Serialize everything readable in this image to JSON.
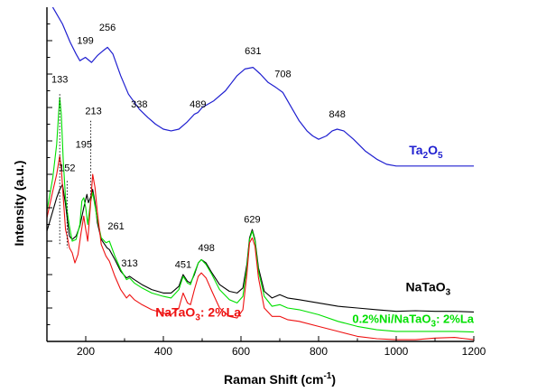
{
  "chart_data": {
    "type": "line",
    "xlabel": "Raman Shift (cm",
    "xlabel_sup": "-1",
    "xlabel_end": ")",
    "ylabel": "Intensity (a.u.)",
    "xlim": [
      100,
      1200
    ],
    "ylim": [
      0,
      10
    ],
    "x_ticks": [
      200,
      400,
      600,
      800,
      1000,
      1200
    ],
    "grid": false,
    "y_tick_labels_shown": false,
    "series": [
      {
        "name": "Ta2O5",
        "label_parts": [
          [
            "Ta",
            "normal"
          ],
          [
            "2",
            "sub"
          ],
          [
            "O",
            "normal"
          ],
          [
            "5",
            "sub"
          ]
        ],
        "label_anchor": [
          1120,
          5.6
        ],
        "color": "#1f1fd0",
        "points": [
          [
            100,
            10.3
          ],
          [
            120,
            9.9
          ],
          [
            140,
            9.5
          ],
          [
            160,
            8.95
          ],
          [
            175,
            8.6
          ],
          [
            185,
            8.4
          ],
          [
            199,
            8.5
          ],
          [
            215,
            8.35
          ],
          [
            230,
            8.55
          ],
          [
            245,
            8.7
          ],
          [
            256,
            8.8
          ],
          [
            270,
            8.6
          ],
          [
            290,
            7.95
          ],
          [
            310,
            7.4
          ],
          [
            338,
            6.95
          ],
          [
            360,
            6.7
          ],
          [
            380,
            6.5
          ],
          [
            400,
            6.35
          ],
          [
            420,
            6.3
          ],
          [
            440,
            6.35
          ],
          [
            460,
            6.55
          ],
          [
            480,
            6.8
          ],
          [
            489,
            6.85
          ],
          [
            500,
            7.0
          ],
          [
            530,
            7.2
          ],
          [
            560,
            7.5
          ],
          [
            590,
            7.95
          ],
          [
            610,
            8.15
          ],
          [
            631,
            8.2
          ],
          [
            650,
            8.0
          ],
          [
            670,
            7.75
          ],
          [
            690,
            7.6
          ],
          [
            708,
            7.45
          ],
          [
            725,
            7.1
          ],
          [
            750,
            6.6
          ],
          [
            770,
            6.3
          ],
          [
            785,
            6.15
          ],
          [
            800,
            6.05
          ],
          [
            820,
            6.15
          ],
          [
            835,
            6.3
          ],
          [
            848,
            6.35
          ],
          [
            865,
            6.3
          ],
          [
            890,
            6.05
          ],
          [
            920,
            5.7
          ],
          [
            950,
            5.45
          ],
          [
            975,
            5.3
          ],
          [
            1000,
            5.25
          ],
          [
            1050,
            5.25
          ],
          [
            1100,
            5.25
          ],
          [
            1150,
            5.25
          ],
          [
            1200,
            5.25
          ]
        ]
      },
      {
        "name": "NaTaO3",
        "label_parts": [
          [
            "NaTaO",
            "normal"
          ],
          [
            "3",
            "sub"
          ]
        ],
        "label_anchor": [
          1140,
          1.5
        ],
        "color": "#000000",
        "points": [
          [
            100,
            3.3
          ],
          [
            115,
            3.9
          ],
          [
            125,
            4.3
          ],
          [
            133,
            4.55
          ],
          [
            140,
            4.7
          ],
          [
            148,
            4.1
          ],
          [
            152,
            3.7
          ],
          [
            158,
            3.15
          ],
          [
            165,
            3.05
          ],
          [
            175,
            3.15
          ],
          [
            185,
            3.45
          ],
          [
            195,
            4.0
          ],
          [
            203,
            4.4
          ],
          [
            207,
            4.15
          ],
          [
            212,
            4.3
          ],
          [
            218,
            4.55
          ],
          [
            224,
            4.15
          ],
          [
            230,
            3.55
          ],
          [
            240,
            3.05
          ],
          [
            255,
            2.8
          ],
          [
            261,
            2.75
          ],
          [
            275,
            2.45
          ],
          [
            290,
            2.1
          ],
          [
            305,
            1.9
          ],
          [
            313,
            1.95
          ],
          [
            325,
            1.85
          ],
          [
            345,
            1.7
          ],
          [
            370,
            1.55
          ],
          [
            400,
            1.45
          ],
          [
            420,
            1.45
          ],
          [
            440,
            1.65
          ],
          [
            451,
            2.0
          ],
          [
            462,
            1.8
          ],
          [
            470,
            1.75
          ],
          [
            480,
            2.0
          ],
          [
            490,
            2.35
          ],
          [
            498,
            2.45
          ],
          [
            510,
            2.35
          ],
          [
            525,
            2.05
          ],
          [
            545,
            1.7
          ],
          [
            570,
            1.5
          ],
          [
            590,
            1.45
          ],
          [
            605,
            1.6
          ],
          [
            615,
            2.3
          ],
          [
            622,
            3.1
          ],
          [
            629,
            3.35
          ],
          [
            636,
            3.05
          ],
          [
            645,
            2.2
          ],
          [
            660,
            1.5
          ],
          [
            680,
            1.3
          ],
          [
            700,
            1.4
          ],
          [
            720,
            1.3
          ],
          [
            750,
            1.25
          ],
          [
            800,
            1.15
          ],
          [
            850,
            1.05
          ],
          [
            900,
            1.0
          ],
          [
            950,
            0.95
          ],
          [
            1000,
            0.9
          ],
          [
            1050,
            0.92
          ],
          [
            1100,
            0.9
          ],
          [
            1150,
            0.9
          ],
          [
            1200,
            0.88
          ]
        ]
      },
      {
        "name": "0.2%Ni/NaTaO3: 2%La",
        "label_parts": [
          [
            "0.2%Ni/NaTaO",
            "normal"
          ],
          [
            "3",
            "sub"
          ],
          [
            ": 2%La",
            "normal"
          ]
        ],
        "label_anchor": [
          1200,
          0.55
        ],
        "color": "#00e000",
        "points": [
          [
            100,
            3.9
          ],
          [
            115,
            4.9
          ],
          [
            125,
            5.9
          ],
          [
            130,
            6.8
          ],
          [
            133,
            7.3
          ],
          [
            137,
            6.8
          ],
          [
            142,
            5.4
          ],
          [
            148,
            4.3
          ],
          [
            152,
            3.9
          ],
          [
            158,
            3.45
          ],
          [
            165,
            3.0
          ],
          [
            175,
            3.05
          ],
          [
            185,
            3.5
          ],
          [
            190,
            4.2
          ],
          [
            195,
            4.3
          ],
          [
            200,
            4.0
          ],
          [
            205,
            3.5
          ],
          [
            212,
            4.15
          ],
          [
            218,
            4.45
          ],
          [
            224,
            4.05
          ],
          [
            230,
            3.65
          ],
          [
            240,
            3.1
          ],
          [
            252,
            2.95
          ],
          [
            261,
            3.0
          ],
          [
            275,
            2.55
          ],
          [
            290,
            2.15
          ],
          [
            305,
            1.85
          ],
          [
            313,
            1.9
          ],
          [
            325,
            1.75
          ],
          [
            345,
            1.6
          ],
          [
            370,
            1.45
          ],
          [
            400,
            1.35
          ],
          [
            420,
            1.3
          ],
          [
            440,
            1.55
          ],
          [
            451,
            1.95
          ],
          [
            462,
            1.75
          ],
          [
            470,
            1.7
          ],
          [
            480,
            2.05
          ],
          [
            490,
            2.35
          ],
          [
            498,
            2.45
          ],
          [
            510,
            2.3
          ],
          [
            525,
            2.0
          ],
          [
            545,
            1.55
          ],
          [
            570,
            1.25
          ],
          [
            590,
            1.15
          ],
          [
            605,
            1.35
          ],
          [
            615,
            2.2
          ],
          [
            622,
            3.05
          ],
          [
            629,
            3.3
          ],
          [
            636,
            3.0
          ],
          [
            645,
            2.1
          ],
          [
            660,
            1.35
          ],
          [
            680,
            1.05
          ],
          [
            700,
            1.1
          ],
          [
            720,
            1.0
          ],
          [
            750,
            0.95
          ],
          [
            800,
            0.8
          ],
          [
            850,
            0.6
          ],
          [
            900,
            0.45
          ],
          [
            950,
            0.35
          ],
          [
            1000,
            0.3
          ],
          [
            1050,
            0.3
          ],
          [
            1100,
            0.3
          ],
          [
            1150,
            0.3
          ],
          [
            1200,
            0.28
          ]
        ]
      },
      {
        "name": "NaTaO3: 2%La",
        "label_parts": [
          [
            "NaTaO",
            "normal"
          ],
          [
            "3",
            "sub"
          ],
          [
            ": 2%La",
            "normal"
          ]
        ],
        "label_anchor": [
          600,
          0.75
        ],
        "color": "#ee1111",
        "points": [
          [
            100,
            3.7
          ],
          [
            115,
            4.5
          ],
          [
            125,
            5.0
          ],
          [
            133,
            5.55
          ],
          [
            137,
            5.2
          ],
          [
            142,
            4.3
          ],
          [
            148,
            3.35
          ],
          [
            152,
            3.15
          ],
          [
            158,
            2.8
          ],
          [
            165,
            2.65
          ],
          [
            172,
            2.35
          ],
          [
            180,
            2.6
          ],
          [
            188,
            3.25
          ],
          [
            195,
            3.75
          ],
          [
            200,
            3.35
          ],
          [
            205,
            3.0
          ],
          [
            212,
            4.05
          ],
          [
            218,
            5.0
          ],
          [
            224,
            4.6
          ],
          [
            230,
            3.85
          ],
          [
            240,
            2.9
          ],
          [
            252,
            2.55
          ],
          [
            261,
            2.4
          ],
          [
            275,
            1.95
          ],
          [
            290,
            1.55
          ],
          [
            305,
            1.3
          ],
          [
            313,
            1.4
          ],
          [
            325,
            1.25
          ],
          [
            345,
            1.1
          ],
          [
            370,
            0.95
          ],
          [
            400,
            0.85
          ],
          [
            420,
            0.8
          ],
          [
            440,
            1.0
          ],
          [
            451,
            1.45
          ],
          [
            462,
            1.15
          ],
          [
            470,
            1.1
          ],
          [
            480,
            1.55
          ],
          [
            490,
            1.95
          ],
          [
            498,
            2.05
          ],
          [
            510,
            1.9
          ],
          [
            525,
            1.5
          ],
          [
            545,
            1.0
          ],
          [
            570,
            0.75
          ],
          [
            590,
            0.7
          ],
          [
            605,
            0.95
          ],
          [
            615,
            2.0
          ],
          [
            622,
            2.95
          ],
          [
            629,
            3.1
          ],
          [
            636,
            2.85
          ],
          [
            645,
            1.9
          ],
          [
            660,
            1.0
          ],
          [
            680,
            0.75
          ],
          [
            700,
            0.75
          ],
          [
            720,
            0.65
          ],
          [
            750,
            0.6
          ],
          [
            800,
            0.45
          ],
          [
            850,
            0.3
          ],
          [
            900,
            0.15
          ],
          [
            950,
            0.08
          ],
          [
            1000,
            0.05
          ],
          [
            1050,
            0.05
          ],
          [
            1100,
            0.1
          ],
          [
            1150,
            0.12
          ],
          [
            1200,
            0.05
          ]
        ]
      }
    ],
    "annotations": [
      {
        "text": "256",
        "x": 256,
        "y": 9.3
      },
      {
        "text": "199",
        "x": 199,
        "y": 8.9
      },
      {
        "text": "338",
        "x": 338,
        "y": 7.0
      },
      {
        "text": "489",
        "x": 489,
        "y": 7.0
      },
      {
        "text": "631",
        "x": 631,
        "y": 8.6
      },
      {
        "text": "708",
        "x": 708,
        "y": 7.9
      },
      {
        "text": "848",
        "x": 848,
        "y": 6.7
      },
      {
        "text": "133",
        "x": 133,
        "y": 7.75
      },
      {
        "text": "213",
        "x": 220,
        "y": 6.8
      },
      {
        "text": "195",
        "x": 195,
        "y": 5.8
      },
      {
        "text": "152",
        "x": 152,
        "y": 5.1
      },
      {
        "text": "261",
        "x": 278,
        "y": 3.35
      },
      {
        "text": "313",
        "x": 313,
        "y": 2.25
      },
      {
        "text": "451",
        "x": 451,
        "y": 2.2
      },
      {
        "text": "498",
        "x": 511,
        "y": 2.7
      },
      {
        "text": "629",
        "x": 629,
        "y": 3.55
      }
    ],
    "dotted_markers": [
      {
        "x": 133,
        "y_from": 7.4,
        "y_to": 2.9
      },
      {
        "x": 213,
        "y_from": 6.6,
        "y_to": 4.3
      },
      {
        "x": 152,
        "y_from": 4.8,
        "y_to": 2.8
      }
    ]
  }
}
